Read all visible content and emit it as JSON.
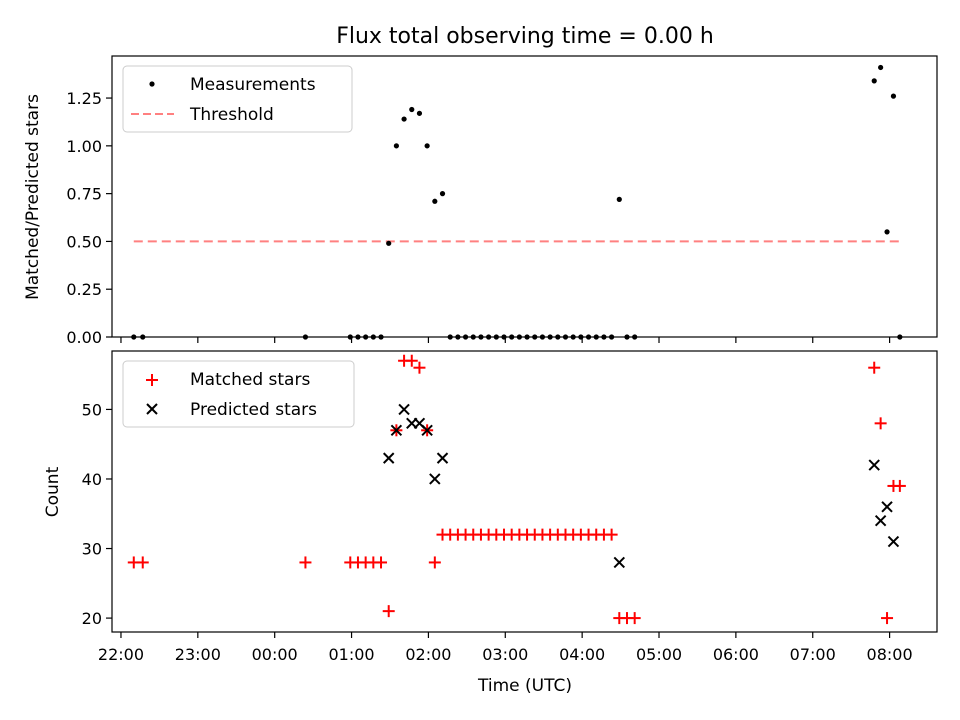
{
  "chart_data": [
    {
      "type": "scatter",
      "title": "Flux total observing time = 0.00 h",
      "ylabel": "Matched/Predicted stars",
      "xlabel": "",
      "x_axis": "time",
      "xlim": [
        "21:53",
        "08:37"
      ],
      "ylim": [
        0,
        1.47
      ],
      "yticks": [
        "0.00",
        "0.25",
        "0.50",
        "0.75",
        "1.00",
        "1.25"
      ],
      "legend_position": "upper-left",
      "grid": false,
      "series": [
        {
          "name": "Measurements",
          "marker": "dot",
          "color": "#000000",
          "points": [
            [
              "22:10",
              0.0
            ],
            [
              "22:17",
              0.0
            ],
            [
              "00:24",
              0.0
            ],
            [
              "00:59",
              0.0
            ],
            [
              "01:05",
              0.0
            ],
            [
              "01:11",
              0.0
            ],
            [
              "01:17",
              0.0
            ],
            [
              "01:23",
              0.0
            ],
            [
              "01:29",
              0.49
            ],
            [
              "01:35",
              1.0
            ],
            [
              "01:41",
              1.14
            ],
            [
              "01:47",
              1.19
            ],
            [
              "01:53",
              1.17
            ],
            [
              "01:59",
              1.0
            ],
            [
              "02:05",
              0.71
            ],
            [
              "02:11",
              0.75
            ],
            [
              "02:17",
              0.0
            ],
            [
              "02:23",
              0.0
            ],
            [
              "02:29",
              0.0
            ],
            [
              "02:35",
              0.0
            ],
            [
              "02:41",
              0.0
            ],
            [
              "02:47",
              0.0
            ],
            [
              "02:53",
              0.0
            ],
            [
              "02:59",
              0.0
            ],
            [
              "03:05",
              0.0
            ],
            [
              "03:11",
              0.0
            ],
            [
              "03:17",
              0.0
            ],
            [
              "03:23",
              0.0
            ],
            [
              "03:29",
              0.0
            ],
            [
              "03:35",
              0.0
            ],
            [
              "03:41",
              0.0
            ],
            [
              "03:47",
              0.0
            ],
            [
              "03:53",
              0.0
            ],
            [
              "03:59",
              0.0
            ],
            [
              "04:05",
              0.0
            ],
            [
              "04:11",
              0.0
            ],
            [
              "04:17",
              0.0
            ],
            [
              "04:23",
              0.0
            ],
            [
              "04:29",
              0.72
            ],
            [
              "04:35",
              0.0
            ],
            [
              "04:41",
              0.0
            ],
            [
              "07:48",
              1.34
            ],
            [
              "07:53",
              1.41
            ],
            [
              "07:58",
              0.55
            ],
            [
              "08:03",
              1.26
            ],
            [
              "08:08",
              0.0
            ]
          ]
        },
        {
          "name": "Threshold",
          "line_style": "dashed",
          "color": "#ff8080",
          "points": [
            [
              "22:10",
              0.5
            ],
            [
              "08:08",
              0.5
            ]
          ]
        }
      ]
    },
    {
      "type": "scatter",
      "title": "",
      "ylabel": "Count",
      "xlabel": "Time (UTC)",
      "x_axis": "time",
      "xlim": [
        "21:53",
        "08:37"
      ],
      "ylim": [
        18,
        58.4
      ],
      "yticks": [
        "20",
        "30",
        "40",
        "50"
      ],
      "xticks": [
        "22:00",
        "23:00",
        "00:00",
        "01:00",
        "02:00",
        "03:00",
        "04:00",
        "05:00",
        "06:00",
        "07:00",
        "08:00"
      ],
      "legend_position": "upper-left",
      "grid": false,
      "series": [
        {
          "name": "Matched stars",
          "marker": "plus",
          "color": "#ff0000",
          "points": [
            [
              "22:10",
              28
            ],
            [
              "22:17",
              28
            ],
            [
              "00:24",
              28
            ],
            [
              "00:59",
              28
            ],
            [
              "01:05",
              28
            ],
            [
              "01:11",
              28
            ],
            [
              "01:17",
              28
            ],
            [
              "01:23",
              28
            ],
            [
              "01:29",
              21
            ],
            [
              "01:35",
              47
            ],
            [
              "01:41",
              57
            ],
            [
              "01:47",
              57
            ],
            [
              "01:53",
              56
            ],
            [
              "01:59",
              47
            ],
            [
              "02:05",
              28
            ],
            [
              "02:11",
              32
            ],
            [
              "02:17",
              32
            ],
            [
              "02:23",
              32
            ],
            [
              "02:29",
              32
            ],
            [
              "02:35",
              32
            ],
            [
              "02:41",
              32
            ],
            [
              "02:47",
              32
            ],
            [
              "02:53",
              32
            ],
            [
              "02:59",
              32
            ],
            [
              "03:05",
              32
            ],
            [
              "03:11",
              32
            ],
            [
              "03:17",
              32
            ],
            [
              "03:23",
              32
            ],
            [
              "03:29",
              32
            ],
            [
              "03:35",
              32
            ],
            [
              "03:41",
              32
            ],
            [
              "03:47",
              32
            ],
            [
              "03:53",
              32
            ],
            [
              "03:59",
              32
            ],
            [
              "04:05",
              32
            ],
            [
              "04:11",
              32
            ],
            [
              "04:17",
              32
            ],
            [
              "04:23",
              32
            ],
            [
              "04:29",
              20
            ],
            [
              "04:35",
              20
            ],
            [
              "04:41",
              20
            ],
            [
              "07:48",
              56
            ],
            [
              "07:53",
              48
            ],
            [
              "07:58",
              20
            ],
            [
              "08:03",
              39
            ],
            [
              "08:08",
              39
            ]
          ]
        },
        {
          "name": "Predicted stars",
          "marker": "x",
          "color": "#000000",
          "points": [
            [
              "01:29",
              43
            ],
            [
              "01:35",
              47
            ],
            [
              "01:41",
              50
            ],
            [
              "01:47",
              48
            ],
            [
              "01:53",
              48
            ],
            [
              "01:59",
              47
            ],
            [
              "02:05",
              40
            ],
            [
              "02:11",
              43
            ],
            [
              "04:29",
              28
            ],
            [
              "07:48",
              42
            ],
            [
              "07:53",
              34
            ],
            [
              "07:58",
              36
            ],
            [
              "08:03",
              31
            ]
          ]
        }
      ]
    }
  ]
}
